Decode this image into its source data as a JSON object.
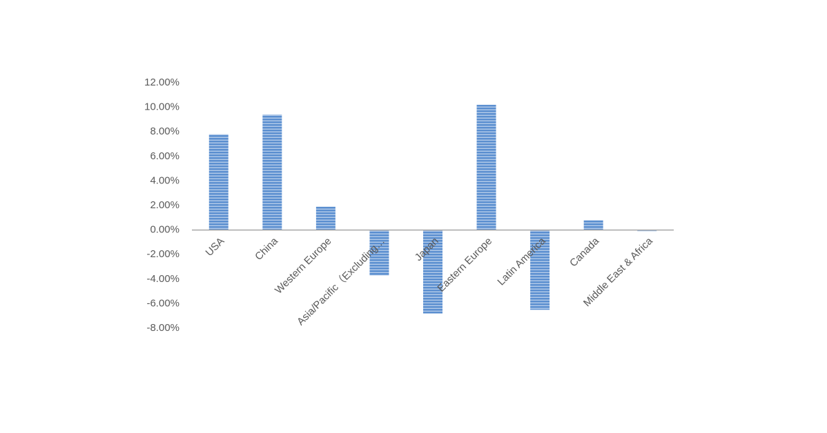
{
  "chart_data": {
    "type": "bar",
    "categories": [
      "USA",
      "China",
      "Western Europe",
      "Asia/Pacific（Excluding…",
      "Japan",
      "Eastern Europe",
      "Latin America",
      "Canada",
      "Middle East & Africa"
    ],
    "values": [
      7.8,
      9.4,
      1.9,
      -3.7,
      -6.8,
      10.2,
      -6.5,
      0.8,
      -0.1
    ],
    "color": "#5b8fd0",
    "ylim": [
      -8,
      12
    ],
    "yticks": [
      {
        "value": -8,
        "label": "-8.00%"
      },
      {
        "value": -6,
        "label": "-6.00%"
      },
      {
        "value": -4,
        "label": "-4.00%"
      },
      {
        "value": -2,
        "label": "-2.00%"
      },
      {
        "value": 0,
        "label": "0.00%"
      },
      {
        "value": 2,
        "label": "2.00%"
      },
      {
        "value": 4,
        "label": "4.00%"
      },
      {
        "value": 6,
        "label": "6.00%"
      },
      {
        "value": 8,
        "label": "8.00%"
      },
      {
        "value": 10,
        "label": "10.00%"
      },
      {
        "value": 12,
        "label": "12.00%"
      }
    ],
    "grid": false
  }
}
